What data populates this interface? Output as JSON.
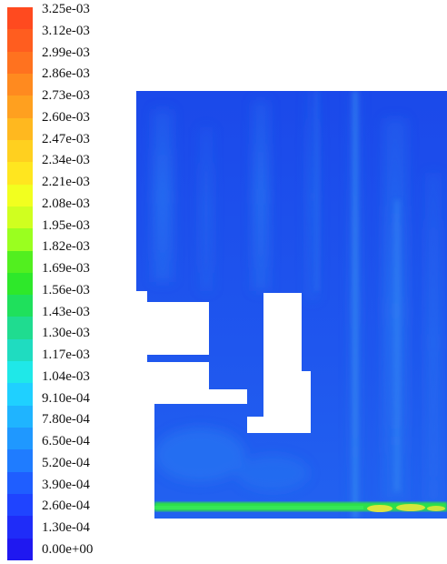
{
  "legend": {
    "labels": [
      "3.25e-03",
      "3.12e-03",
      "2.99e-03",
      "2.86e-03",
      "2.73e-03",
      "2.60e-03",
      "2.47e-03",
      "2.34e-03",
      "2.21e-03",
      "2.08e-03",
      "1.95e-03",
      "1.82e-03",
      "1.69e-03",
      "1.56e-03",
      "1.43e-03",
      "1.30e-03",
      "1.17e-03",
      "1.04e-03",
      "9.10e-04",
      "7.80e-04",
      "6.50e-04",
      "5.20e-04",
      "3.90e-04",
      "2.60e-04",
      "1.30e-04",
      "0.00e+00"
    ],
    "colors": [
      "#ff4a1f",
      "#ff5d1f",
      "#ff721f",
      "#ff8a1f",
      "#ffa01f",
      "#ffb81f",
      "#ffd01f",
      "#ffe61f",
      "#f2ff1f",
      "#d0ff1f",
      "#9aff1f",
      "#52ef1f",
      "#2ee82a",
      "#1fe05c",
      "#1fdc90",
      "#1fdcc0",
      "#1fe8e8",
      "#1fd0ff",
      "#1fb4ff",
      "#1f98ff",
      "#1f7cff",
      "#1f5eff",
      "#1f44ff",
      "#1f2cf8",
      "#1f18f0"
    ]
  },
  "plot": {
    "background": "#1e52ec",
    "streak_color": "#2a7cf2",
    "highlight_color": "#3f9bf5",
    "hot_band_color": "#2ee04a",
    "hot_spot_color": "#f0e83a"
  }
}
